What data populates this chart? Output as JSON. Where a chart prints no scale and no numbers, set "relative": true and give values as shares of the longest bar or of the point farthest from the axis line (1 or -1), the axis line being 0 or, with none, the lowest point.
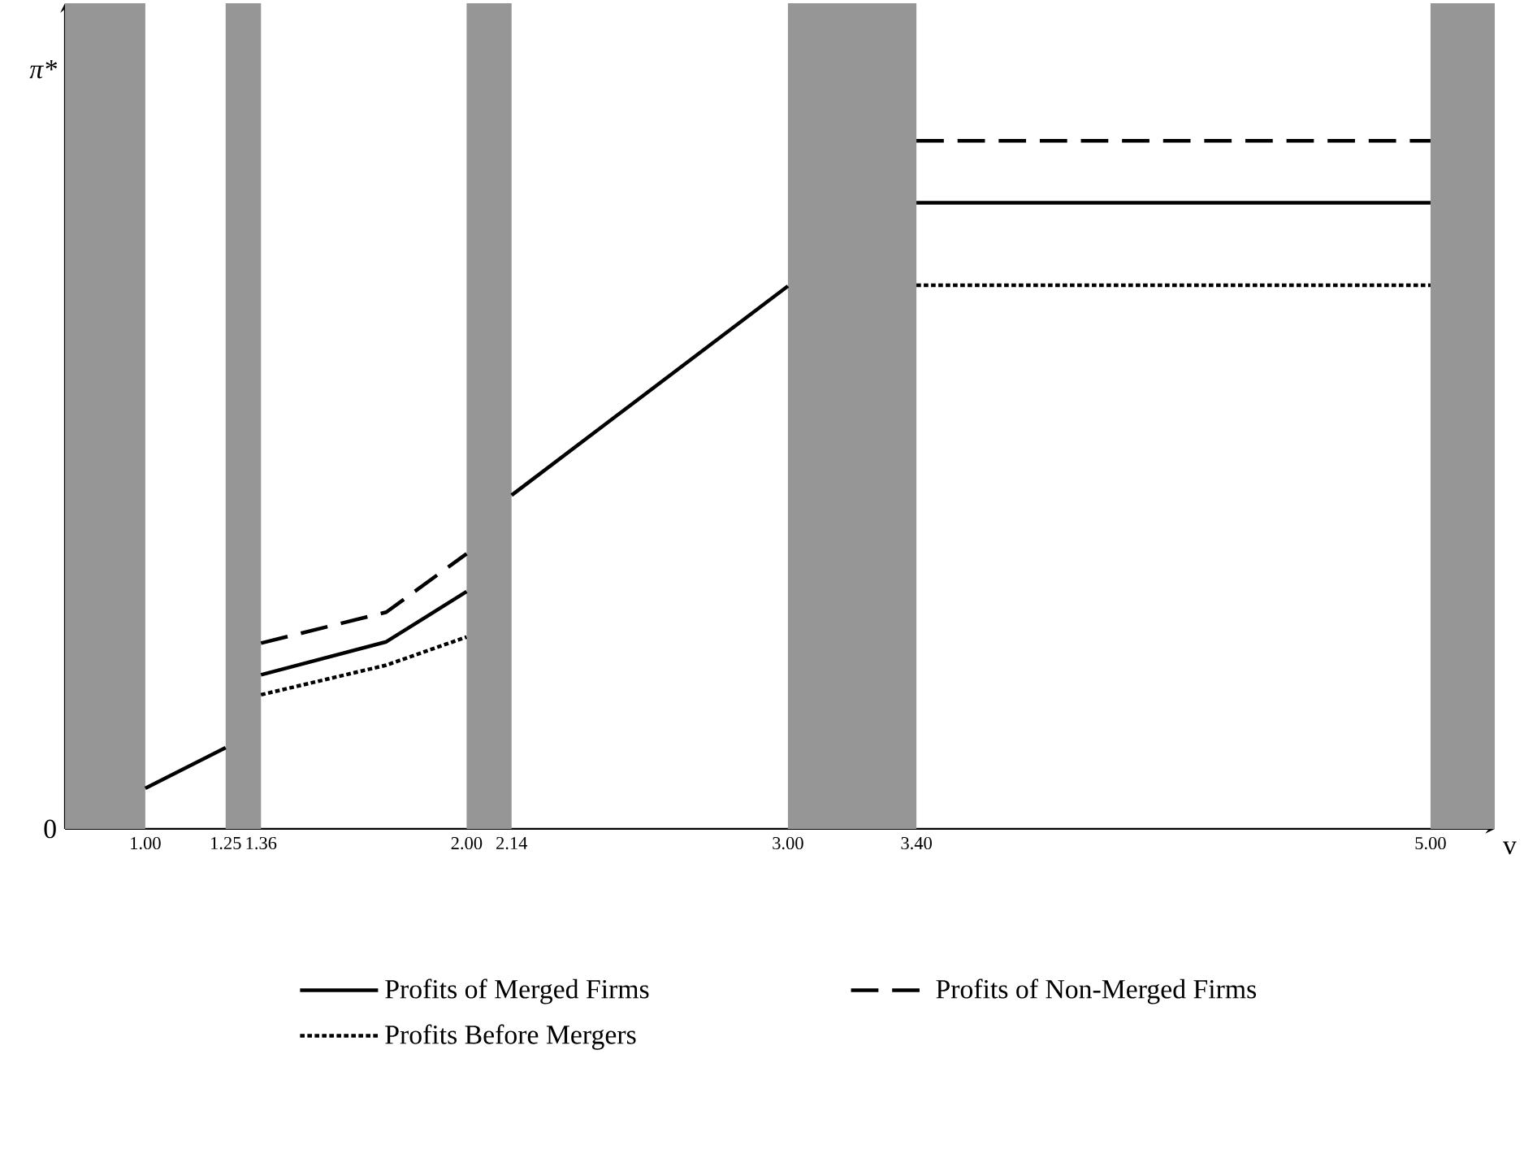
{
  "chart_data": {
    "type": "line",
    "relative": true,
    "xlabel": "v",
    "ylabel": "π*",
    "annotations": [
      "0"
    ],
    "xlim": [
      0.75,
      5.2
    ],
    "xticks": [
      {
        "value": 1.0,
        "label": "1.00"
      },
      {
        "value": 1.25,
        "label": "1.25"
      },
      {
        "value": 1.36,
        "label": "1.36"
      },
      {
        "value": 2.0,
        "label": "2.00"
      },
      {
        "value": 2.14,
        "label": "2.14"
      },
      {
        "value": 3.0,
        "label": "3.00"
      },
      {
        "value": 3.4,
        "label": "3.40"
      },
      {
        "value": 5.0,
        "label": "5.00"
      }
    ],
    "bands": [
      {
        "axis": "x",
        "from": 0.75,
        "to": 1.0,
        "color": "#969696"
      },
      {
        "axis": "x",
        "from": 1.25,
        "to": 1.36,
        "color": "#969696"
      },
      {
        "axis": "x",
        "from": 2.0,
        "to": 2.14,
        "color": "#969696"
      },
      {
        "axis": "x",
        "from": 3.0,
        "to": 3.4,
        "color": "#969696"
      },
      {
        "axis": "x",
        "from": 5.0,
        "to": 5.2,
        "color": "#969696"
      }
    ],
    "series": [
      {
        "name": "Profits of Merged Firms",
        "color": "#000000",
        "line_style": "solid",
        "x": [
          1.0,
          1.25,
          null,
          1.36,
          1.75,
          2.0,
          null,
          2.14,
          3.0,
          null,
          3.4,
          5.0
        ],
        "values": [
          0.059,
          0.118,
          null,
          0.224,
          0.272,
          0.345,
          null,
          0.485,
          0.789,
          null,
          0.91,
          0.91
        ]
      },
      {
        "name": "Profits of Non-Merged Firms",
        "color": "#000000",
        "line_style": "dashed",
        "x": [
          1.36,
          1.75,
          2.0,
          null,
          3.4,
          5.0
        ],
        "values": [
          0.27,
          0.315,
          0.4,
          null,
          1.0,
          1.0
        ]
      },
      {
        "name": "Profits Before Mergers",
        "color": "#000000",
        "line_style": "dotted",
        "x": [
          1.36,
          1.75,
          2.0,
          null,
          3.4,
          5.0
        ],
        "values": [
          0.195,
          0.238,
          0.279,
          null,
          0.79,
          0.79
        ]
      }
    ],
    "grid": false,
    "legend": "bottom",
    "marker": "none"
  }
}
